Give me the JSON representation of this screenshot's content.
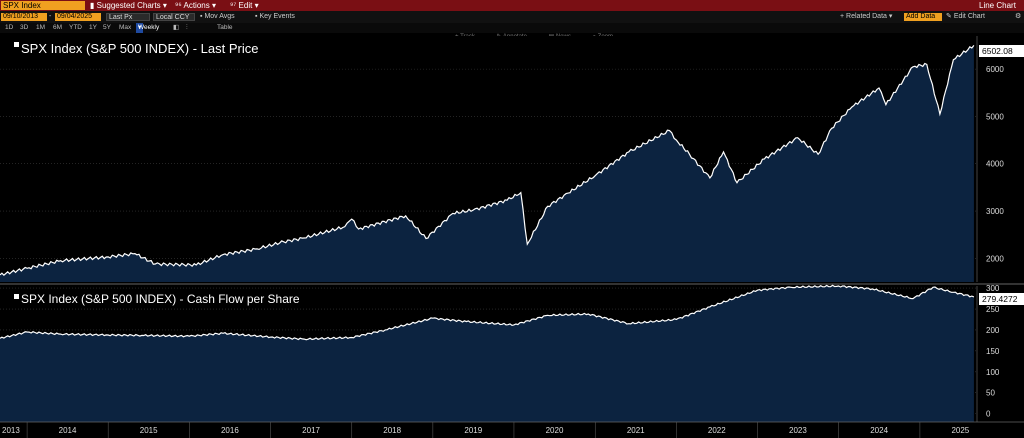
{
  "toolbar": {
    "ticker": "SPX Index",
    "suggested": "Suggested Charts",
    "actions": "Actions",
    "edit": "Edit",
    "chart_type": "Line Chart"
  },
  "settings": {
    "start_date": "09/10/2013",
    "end_date": "09/04/2025",
    "field": "Last Px",
    "currency": "Local CCY",
    "mov_avgs": "Mov Avgs",
    "key_events": "Key Events",
    "related_data": "Related Data",
    "add_data": "Add Data",
    "edit_chart": "Edit Chart"
  },
  "periods": [
    "1D",
    "3D",
    "1M",
    "6M",
    "YTD",
    "1Y",
    "5Y",
    "Max"
  ],
  "frequency": "Weekly",
  "table_label": "Table",
  "chart_tools": [
    "Track",
    "Annotate",
    "News",
    "Zoom"
  ],
  "chart_data": [
    {
      "type": "area",
      "title": "SPX Index (S&P 500 INDEX) - Last Price",
      "series": [
        {
          "name": "SPX Index (S&P 500 INDEX) - Last Price",
          "x": [
            "2013-09",
            "2014-01",
            "2014-06",
            "2015-01",
            "2015-05",
            "2015-08",
            "2016-02",
            "2016-06",
            "2016-11",
            "2017-03",
            "2017-06",
            "2017-12",
            "2018-01",
            "2018-02",
            "2018-09",
            "2018-12",
            "2019-04",
            "2019-07",
            "2019-12",
            "2020-02",
            "2020-03",
            "2020-06",
            "2020-09",
            "2021-01",
            "2021-06",
            "2021-12",
            "2022-01",
            "2022-03",
            "2022-06",
            "2022-08",
            "2022-10",
            "2023-02",
            "2023-07",
            "2023-10",
            "2023-12",
            "2024-03",
            "2024-07",
            "2024-08",
            "2024-12",
            "2025-02",
            "2025-04",
            "2025-06",
            "2025-09"
          ],
          "values": [
            1650,
            1790,
            1950,
            2030,
            2100,
            1880,
            1860,
            2080,
            2200,
            2350,
            2430,
            2670,
            2830,
            2620,
            2900,
            2420,
            2950,
            3020,
            3230,
            3390,
            2300,
            3100,
            3380,
            3750,
            4250,
            4700,
            4500,
            4200,
            3700,
            4250,
            3600,
            4100,
            4550,
            4200,
            4750,
            5200,
            5600,
            5250,
            6050,
            6100,
            5050,
            6200,
            6502
          ]
        }
      ],
      "ylim": [
        1500,
        6700
      ],
      "yticks": [
        2000,
        3000,
        4000,
        5000,
        6000
      ],
      "last_value_label": "6502.08"
    },
    {
      "type": "area",
      "title": "SPX Index (S&P 500 INDEX) - Cash Flow per Share",
      "series": [
        {
          "name": "SPX Index (S&P 500 INDEX) - Cash Flow per Share",
          "x": [
            "2013-09",
            "2014-01",
            "2014-06",
            "2015-01",
            "2015-06",
            "2016-01",
            "2016-06",
            "2017-01",
            "2017-06",
            "2018-01",
            "2018-06",
            "2019-01",
            "2019-06",
            "2020-01",
            "2020-06",
            "2020-12",
            "2021-06",
            "2022-01",
            "2022-06",
            "2023-01",
            "2023-06",
            "2024-01",
            "2024-06",
            "2024-12",
            "2025-03",
            "2025-06",
            "2025-09"
          ],
          "values": [
            180,
            195,
            190,
            188,
            187,
            185,
            192,
            183,
            178,
            182,
            200,
            228,
            220,
            212,
            235,
            238,
            215,
            225,
            255,
            295,
            302,
            305,
            298,
            275,
            302,
            290,
            279
          ]
        }
      ],
      "ylim": [
        -20,
        305
      ],
      "yticks": [
        0,
        50,
        100,
        150,
        200,
        250,
        300
      ],
      "last_value_label": "279.4272"
    }
  ],
  "x_axis": {
    "labels": [
      "2013",
      "2014",
      "2015",
      "2016",
      "2017",
      "2018",
      "2019",
      "2020",
      "2021",
      "2022",
      "2023",
      "2024",
      "2025"
    ]
  },
  "colors": {
    "line": "#ffffff",
    "fill": "#0c2340",
    "grid": "#3a3a3a",
    "top_bar": "#7a0f14",
    "accent": "#f0a020"
  }
}
